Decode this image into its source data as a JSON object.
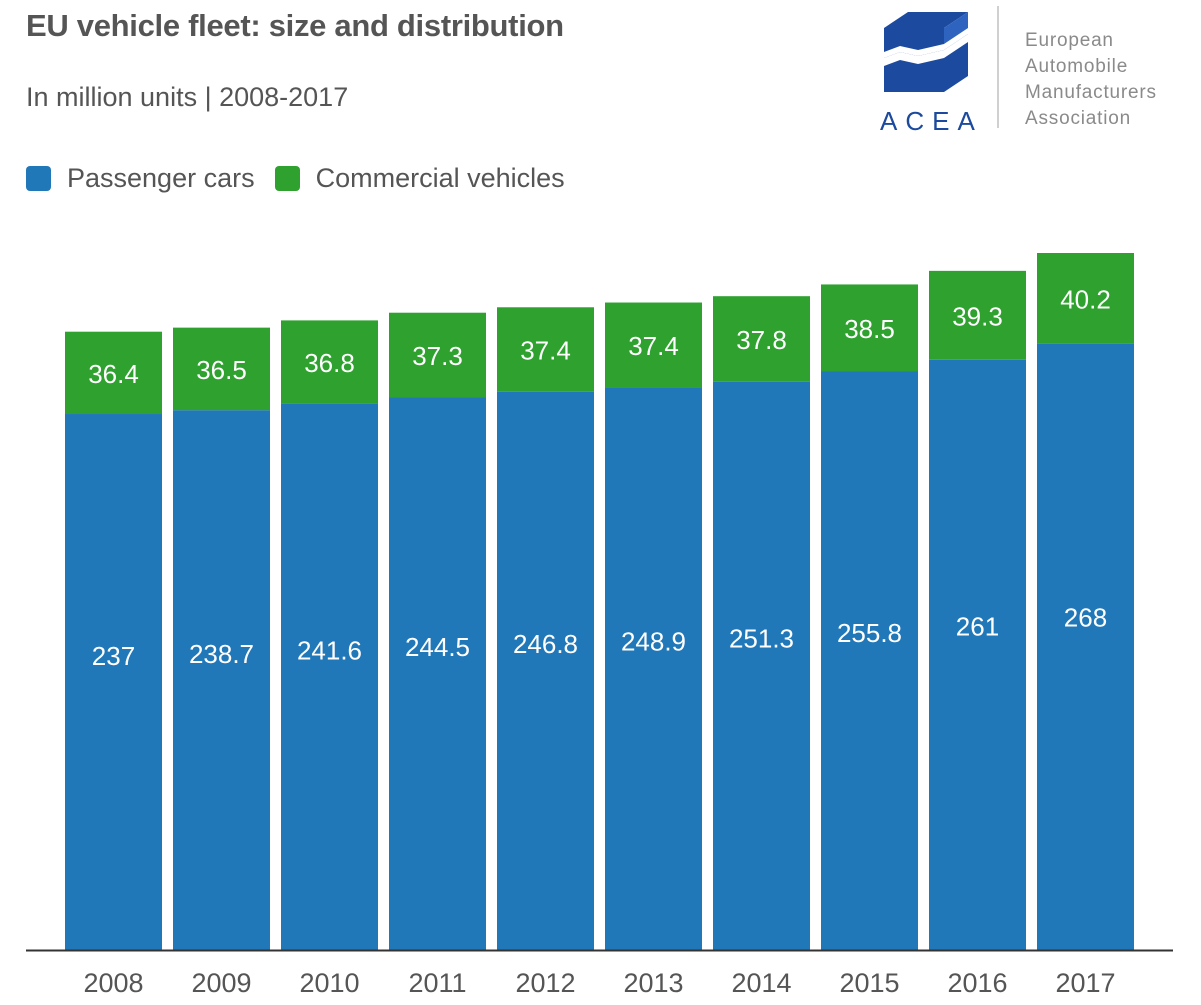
{
  "header": {
    "title": "EU vehicle fleet: size and distribution",
    "subtitle": "In million units | 2008-2017"
  },
  "logo": {
    "wordmark": "ACEA",
    "lines": [
      "European",
      "Automobile",
      "Manufacturers",
      "Association"
    ],
    "color": "#1b4a9e"
  },
  "colors": {
    "passenger": "#2178b8",
    "commercial": "#2fa12f",
    "text": "#555555",
    "axis": "#333333"
  },
  "chart_data": {
    "type": "bar",
    "stacked": true,
    "title": "EU vehicle fleet: size and distribution",
    "subtitle": "In million units | 2008-2017",
    "xlabel": "",
    "ylabel": "",
    "categories": [
      "2008",
      "2009",
      "2010",
      "2011",
      "2012",
      "2013",
      "2014",
      "2015",
      "2016",
      "2017"
    ],
    "series": [
      {
        "name": "Passenger cars",
        "color": "#2178b8",
        "values": [
          237,
          238.7,
          241.6,
          244.5,
          246.8,
          248.9,
          251.3,
          255.8,
          261,
          268
        ]
      },
      {
        "name": "Commercial vehicles",
        "color": "#2fa12f",
        "values": [
          36.4,
          36.5,
          36.8,
          37.3,
          37.4,
          37.4,
          37.8,
          38.5,
          39.3,
          40.2
        ]
      }
    ],
    "ylim": [
      0,
      308.2
    ],
    "grid": false,
    "legend": "top-left",
    "data_labels": true
  }
}
